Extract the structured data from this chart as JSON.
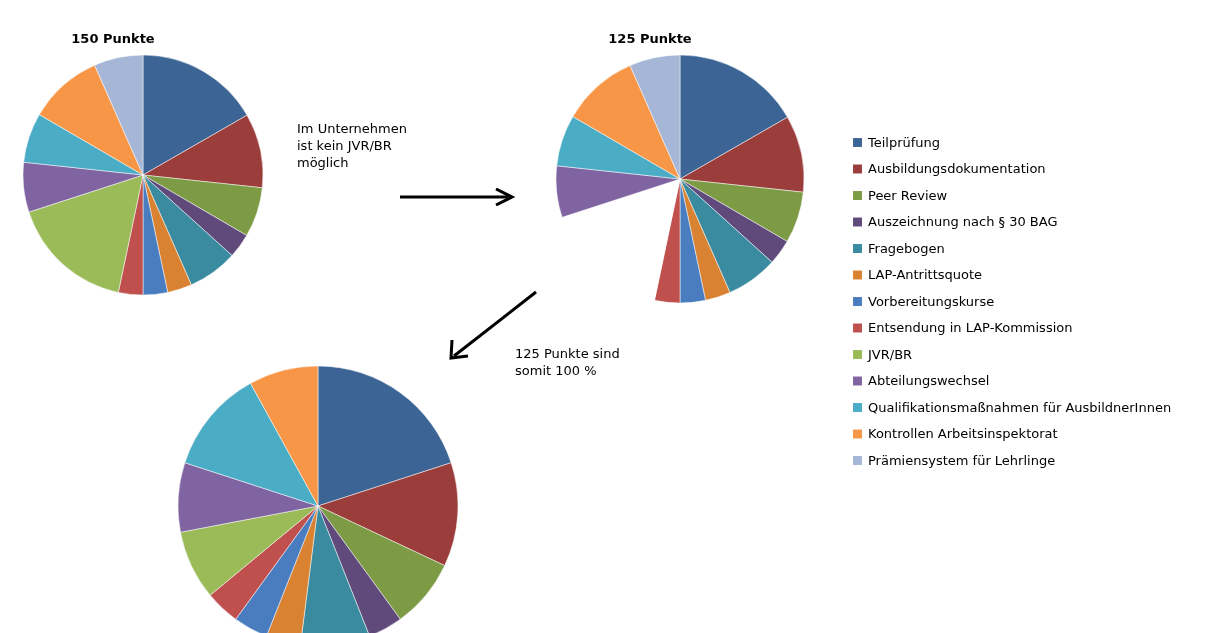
{
  "chart_data": [
    {
      "type": "pie",
      "title": "150 Punkte",
      "categories": [
        "Teilprüfung",
        "Ausbildungsdokumentation",
        "Peer Review",
        "Auszeichnung nach § 30 BAG",
        "Fragebogen",
        "LAP-Antrittsquote",
        "Vorbereitungskurse",
        "Entsendung in LAP-Kommission",
        "JVR/BR",
        "Abteilungswechsel",
        "Qualifikationsmaßnahmen für AusbildnerInnen",
        "Kontrollen Arbeitsinspektorat",
        "Prämiensystem für Lehrlinge"
      ],
      "values": [
        16.7,
        10,
        6.7,
        3.3,
        6.7,
        3.3,
        3.3,
        3.3,
        16.7,
        6.7,
        6.7,
        10,
        6.6
      ],
      "colors": [
        "#3c6595",
        "#9b3d3b",
        "#7d9a45",
        "#5f4a7b",
        "#3a8ba0",
        "#d98231",
        "#4a7dc0",
        "#c0504d",
        "#9bbb59",
        "#8064a2",
        "#4bacc6",
        "#f79646",
        "#a5b6d6"
      ],
      "legend": "right",
      "annotations": [
        "Im Unternehmen ist kein JVR/BR möglich"
      ]
    },
    {
      "type": "pie",
      "title": "125 Punkte",
      "categories": [
        null,
        null,
        null,
        null,
        null,
        null,
        null,
        null,
        null,
        null,
        null,
        null,
        null
      ],
      "values": [
        16.7,
        10,
        6.7,
        3.3,
        6.7,
        3.3,
        3.3,
        3.3,
        16.7,
        6.7,
        6.7,
        10,
        6.6
      ],
      "colors": [
        "#3c6595",
        "#9b3d3b",
        "#7d9a45",
        "#5f4a7b",
        "#3a8ba0",
        "#d98231",
        "#4a7dc0",
        "#c0504d",
        "#ffffff",
        "#8064a2",
        "#4bacc6",
        "#f79646",
        "#a5b6d6"
      ]
    },
    {
      "type": "pie",
      "categories": [
        null,
        null,
        null,
        null,
        null,
        null,
        null,
        null,
        null,
        null,
        null,
        null
      ],
      "values": [
        20,
        12,
        8,
        4,
        8,
        4,
        4,
        4,
        8,
        8,
        12,
        8
      ],
      "colors": [
        "#3c6595",
        "#9b3d3b",
        "#7d9a45",
        "#5f4a7b",
        "#3a8ba0",
        "#d98231",
        "#4a7dc0",
        "#c0504d",
        "#9bbb59",
        "#8064a2",
        "#4bacc6",
        "#f79646"
      ],
      "annotations": [
        "125 Punkte sind somit 100 %"
      ]
    }
  ]
}
